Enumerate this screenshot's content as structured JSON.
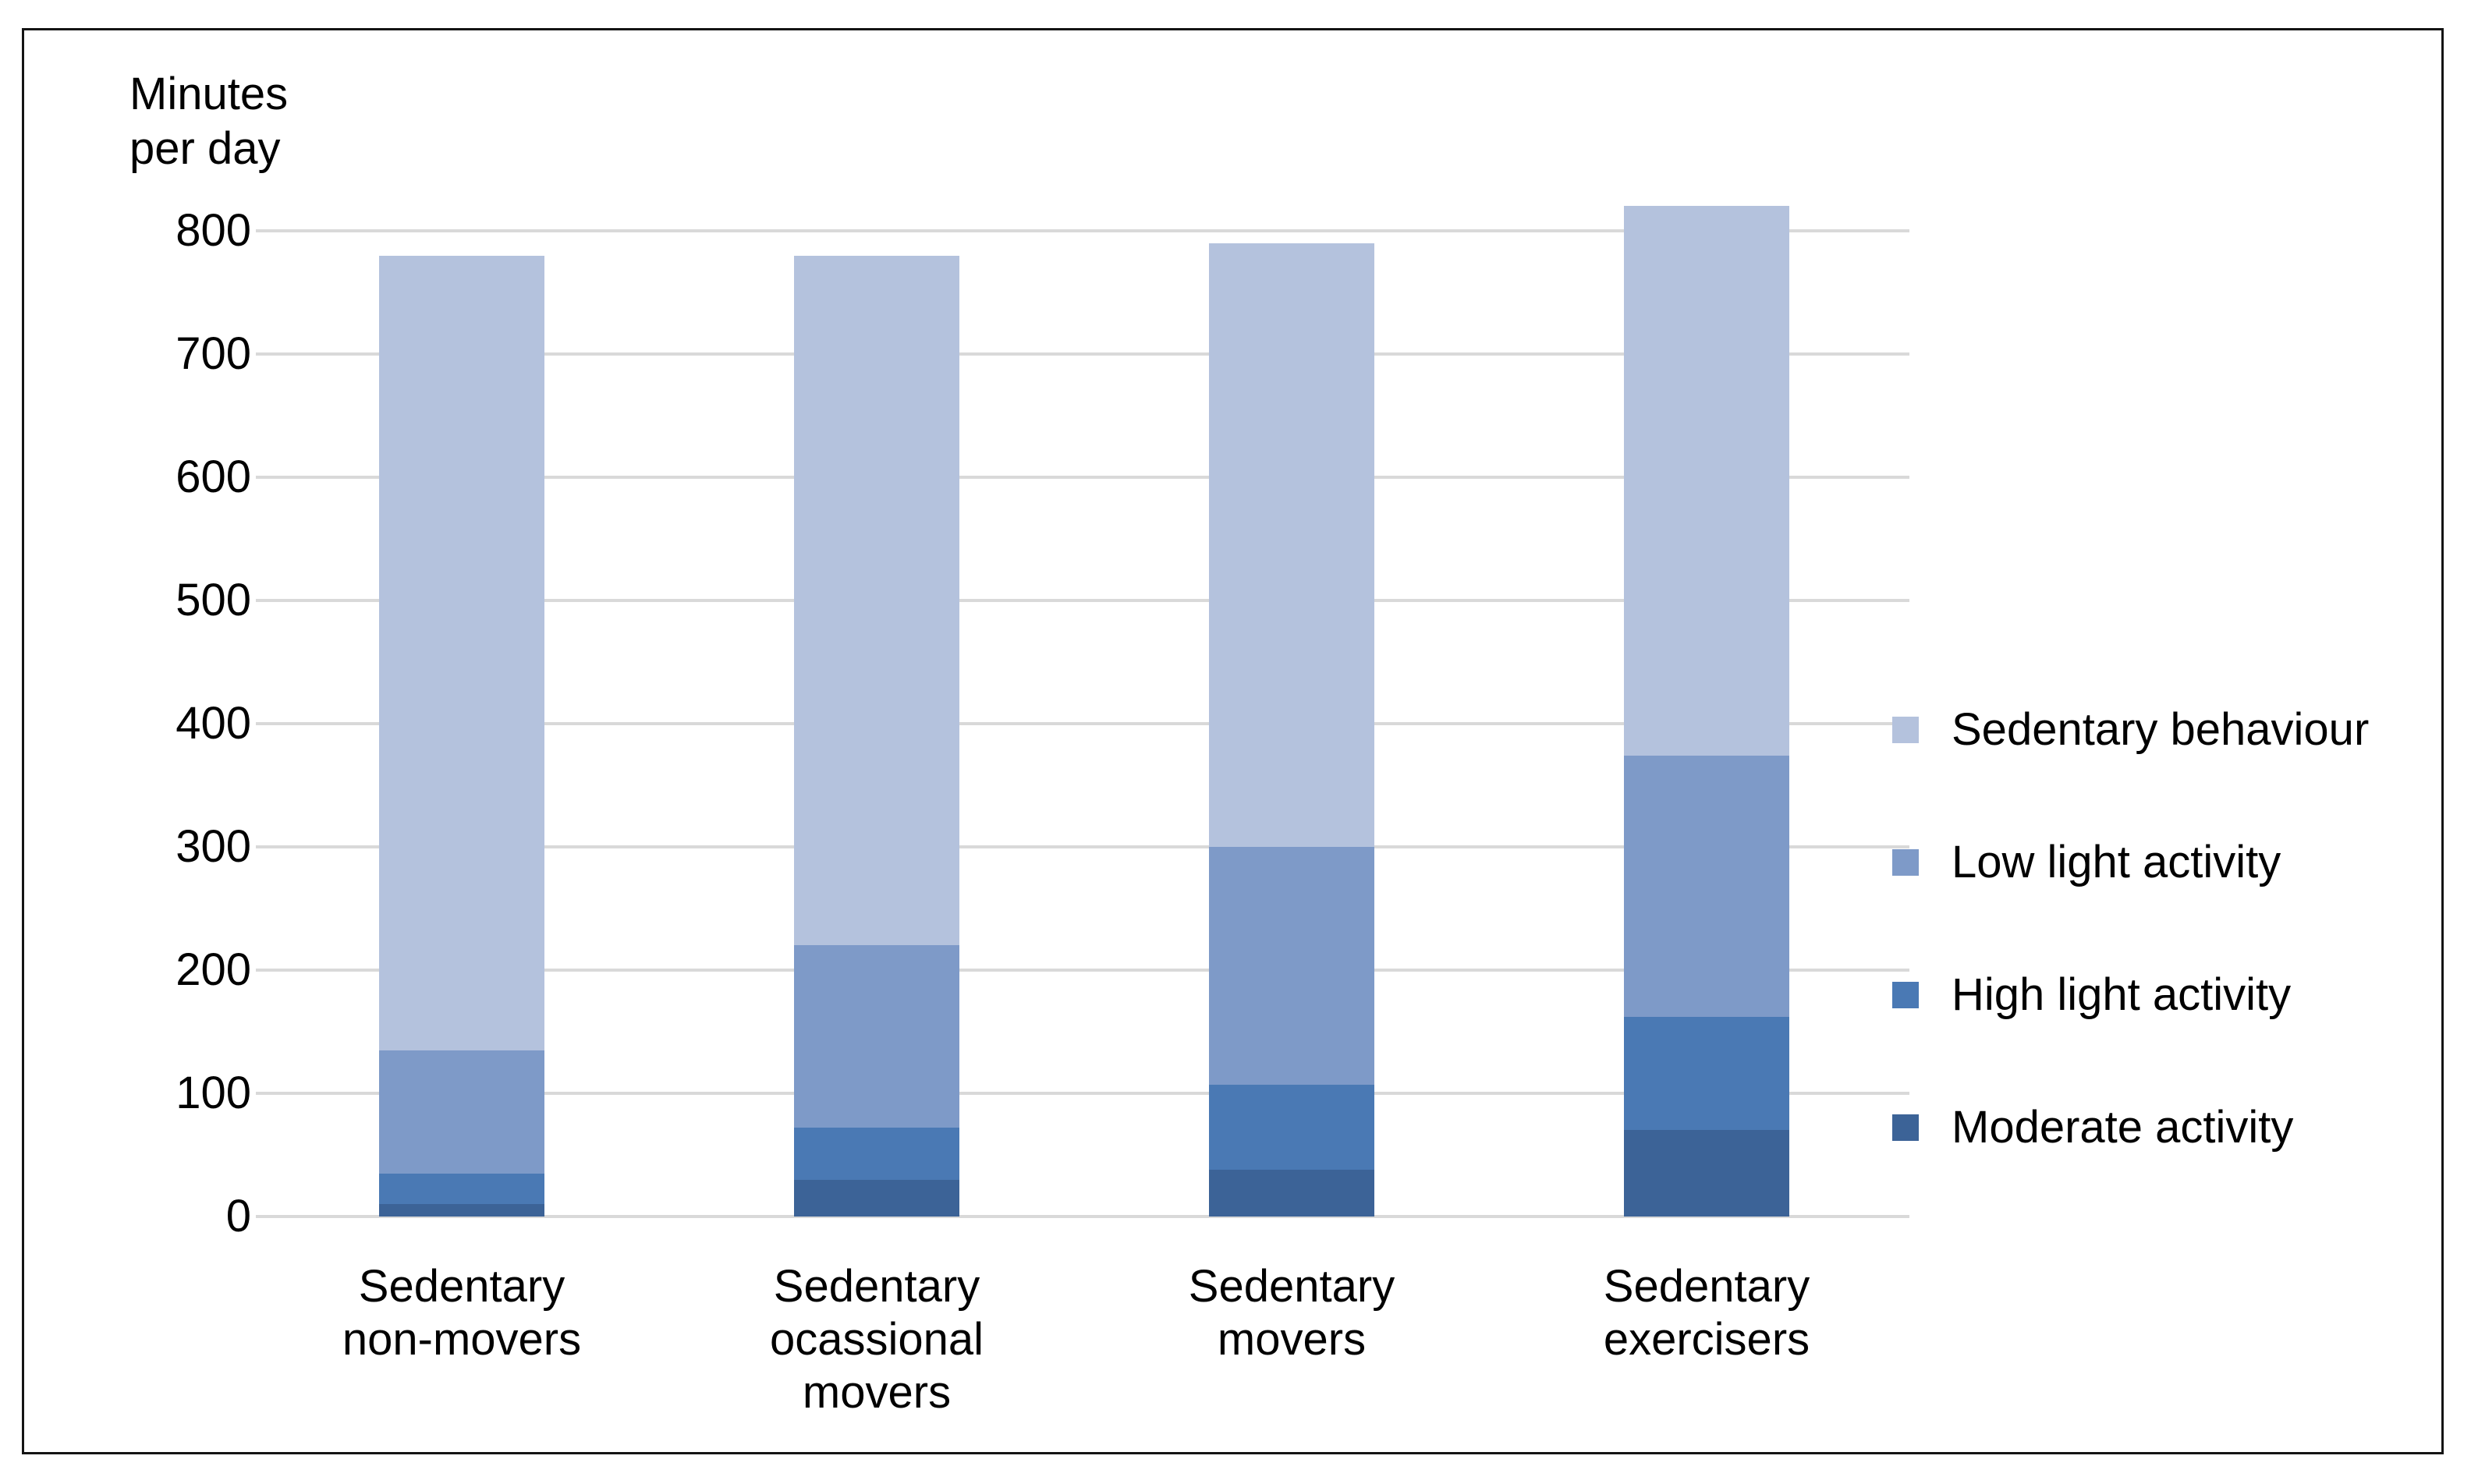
{
  "figure": {
    "title_line1": "Minutes",
    "title_line2": "per day"
  },
  "chart_data": {
    "type": "bar",
    "stacked": true,
    "title": "Minutes per day",
    "ylabel": "Minutes per day",
    "xlabel": "",
    "ylim": [
      0,
      800
    ],
    "yticks": [
      0,
      100,
      200,
      300,
      400,
      500,
      600,
      700,
      800
    ],
    "grid": true,
    "legend_position": "right",
    "categories": [
      "Sedentary non-movers",
      "Sedentary ocassional movers",
      "Sedentary movers",
      "Sedentary exercisers"
    ],
    "category_label_lines": [
      [
        "Sedentary",
        "non-movers"
      ],
      [
        "Sedentary",
        "ocassional",
        "movers"
      ],
      [
        "Sedentary",
        "movers"
      ],
      [
        "Sedentary",
        "exercisers"
      ]
    ],
    "series": [
      {
        "name": "Moderate activity",
        "color": "#3c6397",
        "values": [
          10,
          30,
          38,
          70
        ]
      },
      {
        "name": "High light activity",
        "color": "#4a79b4",
        "values": [
          25,
          42,
          69,
          92
        ]
      },
      {
        "name": "Low light activity",
        "color": "#7e9ac8",
        "values": [
          100,
          148,
          193,
          212
        ]
      },
      {
        "name": "Sedentary behaviour",
        "color": "#b4c2dd",
        "values": [
          645,
          560,
          490,
          446
        ]
      }
    ],
    "totals": [
      780,
      780,
      790,
      820
    ],
    "legend": [
      {
        "label": "Sedentary behaviour",
        "color": "#b4c2dd"
      },
      {
        "label": "Low light activity",
        "color": "#7e9ac8"
      },
      {
        "label": "High light activity",
        "color": "#4a79b4"
      },
      {
        "label": "Moderate activity",
        "color": "#3c6397"
      }
    ],
    "colors": {
      "gridline": "#d9d9d9",
      "frame_border": "#141414",
      "text": "#000000",
      "background": "#ffffff"
    }
  }
}
